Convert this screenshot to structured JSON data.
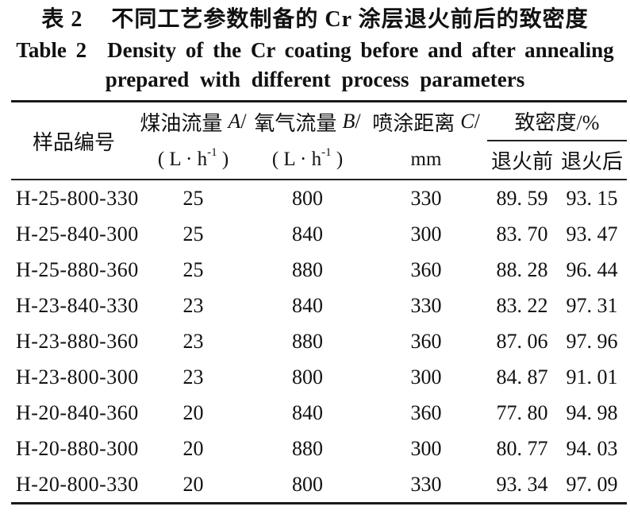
{
  "caption": {
    "zh_label": "表 2",
    "zh_text": "不同工艺参数制备的 Cr 涂层退火前后的致密度",
    "en_label": "Table 2",
    "en_text": "Density of the Cr coating before and after annealing",
    "en_text2": "prepared with different process parameters"
  },
  "table": {
    "headers": {
      "sample": "样品编号",
      "kerosene_zh": "煤油流量",
      "kerosene_var": "A",
      "oxygen_zh": "氧气流量",
      "oxygen_var": "B",
      "distance_zh": "喷涂距离",
      "distance_var": "C",
      "slash": "/",
      "unit_pre": "( L · h",
      "unit_sup": "-1",
      "unit_post": " )",
      "distance_unit": "mm",
      "density_group": "致密度/%",
      "before": "退火前",
      "after": "退火后"
    },
    "rows": [
      {
        "id": "H-25-800-330",
        "kerosene": "25",
        "oxygen": "800",
        "distance": "330",
        "before": "89. 59",
        "after": "93. 15"
      },
      {
        "id": "H-25-840-300",
        "kerosene": "25",
        "oxygen": "840",
        "distance": "300",
        "before": "83. 70",
        "after": "93. 47"
      },
      {
        "id": "H-25-880-360",
        "kerosene": "25",
        "oxygen": "880",
        "distance": "360",
        "before": "88. 28",
        "after": "96. 44"
      },
      {
        "id": "H-23-840-330",
        "kerosene": "23",
        "oxygen": "840",
        "distance": "330",
        "before": "83. 22",
        "after": "97. 31"
      },
      {
        "id": "H-23-880-360",
        "kerosene": "23",
        "oxygen": "880",
        "distance": "360",
        "before": "87. 06",
        "after": "97. 96"
      },
      {
        "id": "H-23-800-300",
        "kerosene": "23",
        "oxygen": "800",
        "distance": "300",
        "before": "84. 87",
        "after": "91. 01"
      },
      {
        "id": "H-20-840-360",
        "kerosene": "20",
        "oxygen": "840",
        "distance": "360",
        "before": "77. 80",
        "after": "94. 98"
      },
      {
        "id": "H-20-880-300",
        "kerosene": "20",
        "oxygen": "880",
        "distance": "300",
        "before": "80. 77",
        "after": "94. 03"
      },
      {
        "id": "H-20-800-330",
        "kerosene": "20",
        "oxygen": "800",
        "distance": "330",
        "before": "93. 34",
        "after": "97. 09"
      }
    ]
  },
  "colors": {
    "text": "#111111",
    "rule": "#1a1a1a",
    "background": "#ffffff"
  }
}
